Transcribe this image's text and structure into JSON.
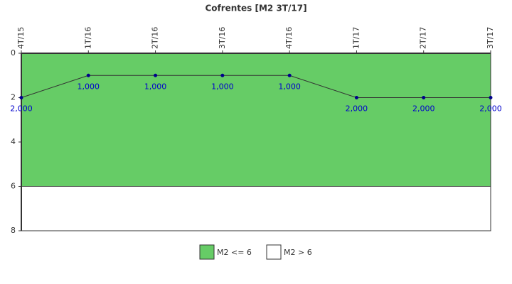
{
  "chart_data": {
    "type": "line",
    "title": "Cofrentes [M2 3T/17]",
    "categories": [
      "4T/15",
      "1T/16",
      "2T/16",
      "3T/16",
      "4T/16",
      "1T/17",
      "2T/17",
      "3T/17"
    ],
    "series": [
      {
        "name": "M2",
        "color": "#333333",
        "marker_color": "#00008b",
        "values": [
          2,
          1,
          1,
          1,
          1,
          2,
          2,
          2
        ],
        "value_labels": [
          "2,000",
          "1,000",
          "1,000",
          "1,000",
          "1,000",
          "2,000",
          "2,000",
          "2,000"
        ],
        "label_color": "#0000cc"
      }
    ],
    "bands": [
      {
        "name": "M2 <= 6",
        "color": "#66cc66",
        "from": 0,
        "to": 6
      },
      {
        "name": "M2 > 6",
        "color": "#ffffff",
        "from": 6,
        "to": 8
      }
    ],
    "ylim": [
      0,
      8
    ],
    "yticks": [
      0,
      2,
      4,
      6,
      8
    ],
    "y_inverted": true,
    "grid": false
  }
}
